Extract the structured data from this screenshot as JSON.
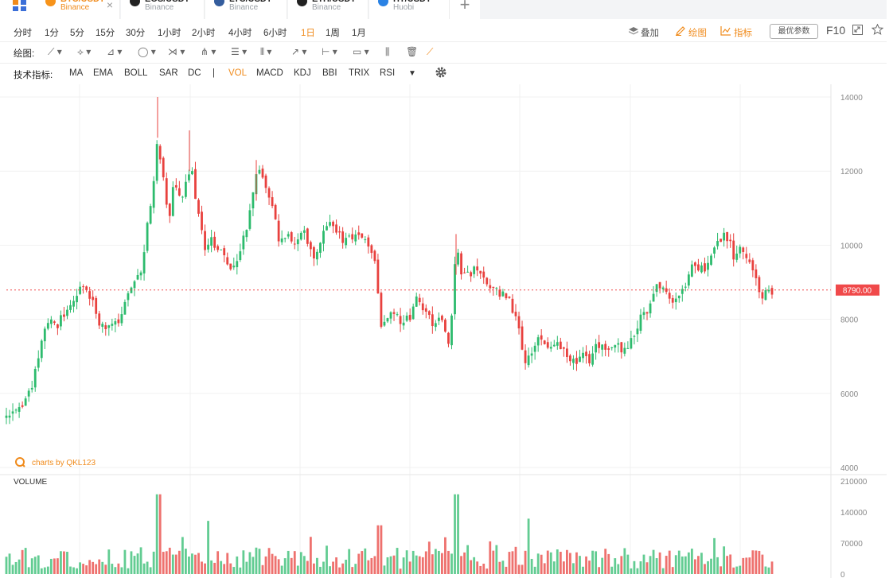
{
  "tabs": [
    {
      "symbol": "BTC/USDT",
      "exchange": "Binance",
      "color": "#f7931a",
      "active": true
    },
    {
      "symbol": "EOS/USDT",
      "exchange": "Binance",
      "color": "#222222",
      "active": false
    },
    {
      "symbol": "LTC/USDT",
      "exchange": "Binance",
      "color": "#345d9d",
      "active": false
    },
    {
      "symbol": "ETH/USDT",
      "exchange": "Binance",
      "color": "#222222",
      "active": false
    },
    {
      "symbol": "HT/USDT",
      "exchange": "Huobi",
      "color": "#2a82e4",
      "active": false
    }
  ],
  "intervals": [
    "分时",
    "1分",
    "5分",
    "15分",
    "30分",
    "1小时",
    "2小时",
    "4小时",
    "6小时",
    "1日",
    "1周",
    "1月"
  ],
  "active_interval": "1日",
  "right_tools": {
    "overlay": "叠加",
    "draw": "绘图",
    "indicator": "指标",
    "params": "最优参数",
    "f10": "F10"
  },
  "draw_label": "绘图:",
  "indicator_label": "技术指标:",
  "indicators": [
    "MA",
    "EMA",
    "BOLL",
    "SAR",
    "DC",
    "|",
    "VOL",
    "MACD",
    "KDJ",
    "BBI",
    "TRIX",
    "RSI"
  ],
  "active_indicator": "VOL",
  "icons": {
    "apps": "apps-grid-icon",
    "add": "plus-icon",
    "overlay": "layers-icon",
    "draw": "pencil-icon",
    "indicator": "line-chart-icon",
    "fullscreen": "fullscreen-icon",
    "favorite": "star-icon",
    "settings": "gear-icon",
    "logo": "qkl-logo-icon"
  },
  "colors": {
    "up": "#2dbb6d",
    "down": "#e8413e",
    "accent": "#f08b1c",
    "price_tag": "#f0494a"
  },
  "chart_data": {
    "type": "candlestick",
    "watermark": "charts by QKL123",
    "price_axis": {
      "ticks": [
        14000,
        12000,
        10000,
        8000,
        6000,
        4000
      ],
      "range": [
        4000,
        14000
      ]
    },
    "current_price": 8790,
    "current_price_label": "8790.00",
    "volume_label": "VOLUME",
    "volume_axis": {
      "ticks": [
        210000,
        140000,
        70000,
        0
      ],
      "range": [
        0,
        210000
      ]
    },
    "close_path": [
      [
        0,
        5350
      ],
      [
        8,
        5300
      ],
      [
        16,
        5450
      ],
      [
        25,
        5600
      ],
      [
        32,
        5900
      ],
      [
        40,
        6150
      ],
      [
        48,
        6900
      ],
      [
        55,
        7700
      ],
      [
        62,
        8000
      ],
      [
        70,
        7750
      ],
      [
        78,
        8100
      ],
      [
        86,
        8200
      ],
      [
        95,
        8600
      ],
      [
        102,
        8900
      ],
      [
        110,
        8650
      ],
      [
        118,
        8400
      ],
      [
        125,
        7900
      ],
      [
        132,
        7700
      ],
      [
        140,
        7800
      ],
      [
        148,
        7900
      ],
      [
        155,
        8200
      ],
      [
        162,
        8700
      ],
      [
        170,
        9200
      ],
      [
        178,
        9400
      ],
      [
        185,
        10600
      ],
      [
        192,
        11300
      ],
      [
        198,
        12900
      ],
      [
        205,
        11800
      ],
      [
        212,
        10500
      ],
      [
        218,
        11700
      ],
      [
        225,
        11200
      ],
      [
        232,
        11500
      ],
      [
        240,
        12200
      ],
      [
        246,
        11100
      ],
      [
        252,
        10700
      ],
      [
        258,
        9800
      ],
      [
        265,
        10200
      ],
      [
        272,
        9900
      ],
      [
        280,
        9700
      ],
      [
        288,
        9400
      ],
      [
        296,
        9500
      ],
      [
        304,
        10000
      ],
      [
        312,
        10700
      ],
      [
        318,
        11500
      ],
      [
        325,
        12100
      ],
      [
        332,
        11700
      ],
      [
        340,
        11200
      ],
      [
        346,
        10600
      ],
      [
        352,
        10000
      ],
      [
        360,
        10300
      ],
      [
        368,
        9900
      ],
      [
        376,
        10200
      ],
      [
        384,
        10300
      ],
      [
        392,
        9700
      ],
      [
        400,
        9800
      ],
      [
        408,
        10600
      ],
      [
        416,
        10700
      ],
      [
        424,
        10300
      ],
      [
        432,
        10100
      ],
      [
        440,
        10300
      ],
      [
        448,
        10200
      ],
      [
        456,
        10100
      ],
      [
        464,
        10000
      ],
      [
        472,
        9400
      ],
      [
        478,
        7900
      ],
      [
        485,
        7850
      ],
      [
        492,
        8200
      ],
      [
        500,
        8000
      ],
      [
        508,
        7950
      ],
      [
        516,
        8000
      ],
      [
        524,
        8550
      ],
      [
        532,
        8200
      ],
      [
        540,
        8000
      ],
      [
        548,
        7850
      ],
      [
        556,
        8000
      ],
      [
        563,
        7400
      ],
      [
        568,
        8100
      ],
      [
        573,
        9900
      ],
      [
        580,
        9300
      ],
      [
        588,
        9200
      ],
      [
        596,
        9300
      ],
      [
        604,
        9300
      ],
      [
        612,
        9000
      ],
      [
        620,
        8800
      ],
      [
        628,
        8700
      ],
      [
        636,
        8600
      ],
      [
        644,
        8300
      ],
      [
        652,
        7700
      ],
      [
        660,
        6900
      ],
      [
        668,
        7200
      ],
      [
        676,
        7400
      ],
      [
        684,
        7300
      ],
      [
        692,
        7200
      ],
      [
        700,
        7300
      ],
      [
        708,
        7150
      ],
      [
        716,
        7000
      ],
      [
        724,
        6800
      ],
      [
        732,
        7100
      ],
      [
        740,
        6900
      ],
      [
        748,
        7300
      ],
      [
        756,
        7200
      ],
      [
        764,
        7100
      ],
      [
        772,
        7300
      ],
      [
        780,
        7200
      ],
      [
        788,
        7300
      ],
      [
        796,
        7600
      ],
      [
        804,
        8000
      ],
      [
        812,
        8200
      ],
      [
        820,
        8700
      ],
      [
        828,
        8900
      ],
      [
        836,
        8700
      ],
      [
        844,
        8500
      ],
      [
        852,
        8600
      ],
      [
        860,
        8900
      ],
      [
        868,
        9400
      ],
      [
        876,
        9400
      ],
      [
        884,
        9300
      ],
      [
        892,
        9800
      ],
      [
        900,
        10000
      ],
      [
        908,
        10300
      ],
      [
        916,
        10100
      ],
      [
        924,
        9600
      ],
      [
        932,
        10000
      ],
      [
        940,
        9600
      ],
      [
        946,
        9400
      ],
      [
        952,
        8900
      ],
      [
        958,
        8650
      ],
      [
        964,
        8700
      ],
      [
        970,
        8790
      ]
    ],
    "volume_bars_count": 240
  }
}
